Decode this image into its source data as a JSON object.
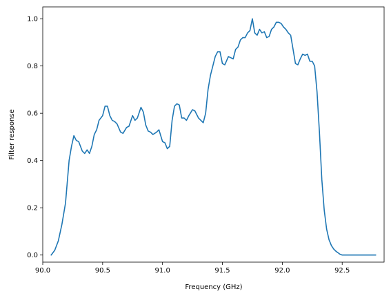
{
  "chart_data": {
    "type": "line",
    "title": "",
    "xlabel": "Frequency (GHz)",
    "ylabel": "Filter response",
    "xlim": [
      90.0,
      92.85
    ],
    "ylim": [
      -0.03,
      1.05
    ],
    "grid": false,
    "x_ticks": [
      90.0,
      90.5,
      91.0,
      91.5,
      92.0,
      92.5
    ],
    "x_tick_labels": [
      "90.0",
      "90.5",
      "91.0",
      "91.5",
      "92.0",
      "92.5"
    ],
    "y_ticks": [
      0.0,
      0.2,
      0.4,
      0.6,
      0.8,
      1.0
    ],
    "y_tick_labels": [
      "0.0",
      "0.2",
      "0.4",
      "0.6",
      "0.8",
      "1.0"
    ],
    "series": [
      {
        "color": "#1f77b4",
        "x": [
          90.07,
          90.1,
          90.13,
          90.16,
          90.19,
          90.22,
          90.24,
          90.26,
          90.28,
          90.3,
          90.33,
          90.35,
          90.37,
          90.39,
          90.41,
          90.43,
          90.45,
          90.47,
          90.5,
          90.52,
          90.54,
          90.56,
          90.58,
          90.6,
          90.62,
          90.65,
          90.67,
          90.7,
          90.72,
          90.75,
          90.77,
          90.79,
          90.82,
          90.84,
          90.86,
          90.88,
          90.9,
          90.92,
          90.95,
          90.97,
          91.0,
          91.02,
          91.04,
          91.06,
          91.08,
          91.1,
          91.12,
          91.14,
          91.16,
          91.18,
          91.2,
          91.22,
          91.25,
          91.27,
          91.3,
          91.32,
          91.34,
          91.36,
          91.38,
          91.4,
          91.42,
          91.44,
          91.46,
          91.48,
          91.5,
          91.52,
          91.55,
          91.57,
          91.59,
          91.61,
          91.63,
          91.65,
          91.67,
          91.69,
          91.71,
          91.73,
          91.75,
          91.77,
          91.79,
          91.81,
          91.83,
          91.85,
          91.87,
          91.89,
          91.91,
          91.93,
          91.95,
          91.97,
          91.99,
          92.01,
          92.03,
          92.05,
          92.07,
          92.09,
          92.11,
          92.13,
          92.15,
          92.17,
          92.19,
          92.21,
          92.23,
          92.25,
          92.27,
          92.29,
          92.31,
          92.33,
          92.35,
          92.37,
          92.39,
          92.41,
          92.43,
          92.45,
          92.47,
          92.48,
          92.5,
          92.52,
          92.54,
          92.56,
          92.58,
          92.6,
          92.63,
          92.66,
          92.7,
          92.74,
          92.78
        ],
        "y": [
          0.0,
          0.02,
          0.06,
          0.13,
          0.22,
          0.4,
          0.46,
          0.505,
          0.485,
          0.48,
          0.44,
          0.43,
          0.445,
          0.43,
          0.46,
          0.51,
          0.53,
          0.57,
          0.59,
          0.63,
          0.63,
          0.59,
          0.57,
          0.565,
          0.555,
          0.52,
          0.515,
          0.54,
          0.545,
          0.59,
          0.57,
          0.58,
          0.625,
          0.605,
          0.55,
          0.525,
          0.52,
          0.51,
          0.52,
          0.53,
          0.48,
          0.475,
          0.45,
          0.46,
          0.57,
          0.63,
          0.64,
          0.635,
          0.58,
          0.58,
          0.57,
          0.59,
          0.615,
          0.61,
          0.58,
          0.57,
          0.56,
          0.6,
          0.7,
          0.76,
          0.8,
          0.84,
          0.86,
          0.86,
          0.81,
          0.805,
          0.84,
          0.835,
          0.83,
          0.87,
          0.88,
          0.91,
          0.92,
          0.92,
          0.94,
          0.95,
          1.0,
          0.94,
          0.93,
          0.955,
          0.94,
          0.945,
          0.92,
          0.925,
          0.955,
          0.965,
          0.985,
          0.985,
          0.98,
          0.965,
          0.955,
          0.94,
          0.93,
          0.87,
          0.81,
          0.805,
          0.83,
          0.85,
          0.845,
          0.85,
          0.82,
          0.82,
          0.8,
          0.69,
          0.52,
          0.32,
          0.19,
          0.11,
          0.065,
          0.04,
          0.025,
          0.015,
          0.008,
          0.004,
          0.0,
          0.0,
          0.0,
          0.0,
          0.0,
          0.0,
          0.0,
          0.0,
          0.0,
          0.0,
          0.0
        ]
      }
    ]
  }
}
